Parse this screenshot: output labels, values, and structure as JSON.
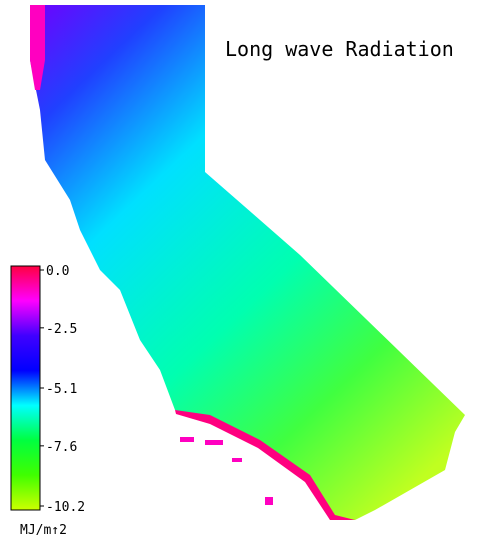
{
  "title": "Long wave Radiation",
  "colorbar": {
    "range": [
      0,
      -10.2
    ],
    "ticks": [
      {
        "value": 0,
        "label": "0.0"
      },
      -2.5,
      -5.1,
      -7.6,
      -10.2
    ],
    "colors": [
      "#ff0040",
      "#ff00ff",
      "#4000ff",
      "#0000ff",
      "#00ffff",
      "#00ff40",
      "#40ff00",
      "#ccff00"
    ],
    "unit": "MJ/m↑2"
  }
}
